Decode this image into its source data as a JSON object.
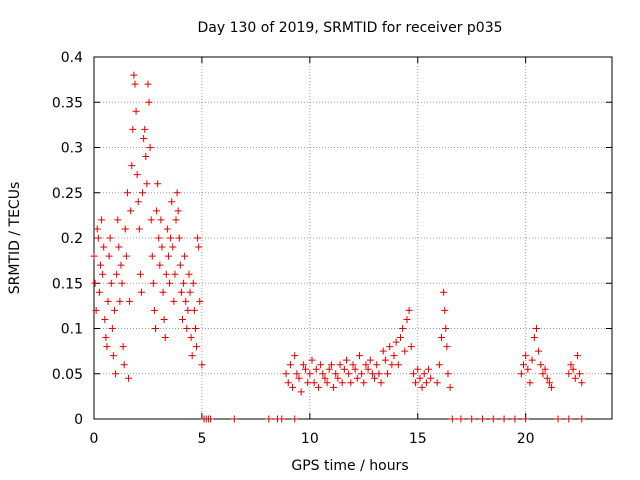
{
  "chart_data": {
    "type": "scatter",
    "title": "Day 130 of 2019, SRMTID for receiver p035",
    "xlabel": "GPS time / hours",
    "ylabel": "SRMTID / TECUs",
    "xlim": [
      0,
      24
    ],
    "ylim": [
      0,
      0.4
    ],
    "x_ticks": [
      0,
      5,
      10,
      15,
      20
    ],
    "x_tick_labels": [
      "0",
      "5",
      "10",
      "15",
      "20"
    ],
    "y_ticks": [
      0,
      0.05,
      0.1,
      0.15,
      0.2,
      0.25,
      0.3,
      0.35,
      0.4
    ],
    "y_tick_labels": [
      "0",
      "0.05",
      "0.1",
      "0.15",
      "0.2",
      "0.25",
      "0.3",
      "0.35",
      "0.4"
    ],
    "grid": true,
    "marker": "+",
    "color": "#e00000",
    "series": [
      {
        "name": "SRMTID",
        "points": [
          [
            0.0,
            0.18
          ],
          [
            0.05,
            0.15
          ],
          [
            0.1,
            0.12
          ],
          [
            0.15,
            0.21
          ],
          [
            0.2,
            0.2
          ],
          [
            0.25,
            0.14
          ],
          [
            0.3,
            0.17
          ],
          [
            0.35,
            0.22
          ],
          [
            0.4,
            0.16
          ],
          [
            0.45,
            0.19
          ],
          [
            0.5,
            0.11
          ],
          [
            0.55,
            0.09
          ],
          [
            0.6,
            0.08
          ],
          [
            0.65,
            0.13
          ],
          [
            0.7,
            0.18
          ],
          [
            0.75,
            0.2
          ],
          [
            0.8,
            0.15
          ],
          [
            0.85,
            0.1
          ],
          [
            0.9,
            0.07
          ],
          [
            0.95,
            0.12
          ],
          [
            1.0,
            0.05
          ],
          [
            1.05,
            0.16
          ],
          [
            1.1,
            0.22
          ],
          [
            1.15,
            0.19
          ],
          [
            1.2,
            0.13
          ],
          [
            1.25,
            0.17
          ],
          [
            1.3,
            0.15
          ],
          [
            1.35,
            0.08
          ],
          [
            1.4,
            0.06
          ],
          [
            1.45,
            0.21
          ],
          [
            1.5,
            0.18
          ],
          [
            1.55,
            0.25
          ],
          [
            1.6,
            0.045
          ],
          [
            1.65,
            0.13
          ],
          [
            1.7,
            0.23
          ],
          [
            1.75,
            0.28
          ],
          [
            1.8,
            0.32
          ],
          [
            1.85,
            0.38
          ],
          [
            1.9,
            0.37
          ],
          [
            1.95,
            0.34
          ],
          [
            2.0,
            0.27
          ],
          [
            2.05,
            0.24
          ],
          [
            2.1,
            0.21
          ],
          [
            2.15,
            0.16
          ],
          [
            2.2,
            0.14
          ],
          [
            2.25,
            0.25
          ],
          [
            2.3,
            0.31
          ],
          [
            2.35,
            0.32
          ],
          [
            2.4,
            0.29
          ],
          [
            2.45,
            0.26
          ],
          [
            2.5,
            0.37
          ],
          [
            2.55,
            0.35
          ],
          [
            2.6,
            0.3
          ],
          [
            2.65,
            0.22
          ],
          [
            2.7,
            0.18
          ],
          [
            2.75,
            0.15
          ],
          [
            2.8,
            0.12
          ],
          [
            2.85,
            0.1
          ],
          [
            2.9,
            0.23
          ],
          [
            2.95,
            0.26
          ],
          [
            3.0,
            0.2
          ],
          [
            3.05,
            0.17
          ],
          [
            3.1,
            0.22
          ],
          [
            3.15,
            0.19
          ],
          [
            3.2,
            0.14
          ],
          [
            3.25,
            0.11
          ],
          [
            3.3,
            0.09
          ],
          [
            3.35,
            0.16
          ],
          [
            3.4,
            0.21
          ],
          [
            3.45,
            0.18
          ],
          [
            3.5,
            0.15
          ],
          [
            3.55,
            0.2
          ],
          [
            3.6,
            0.24
          ],
          [
            3.65,
            0.19
          ],
          [
            3.7,
            0.13
          ],
          [
            3.75,
            0.16
          ],
          [
            3.8,
            0.22
          ],
          [
            3.85,
            0.25
          ],
          [
            3.9,
            0.23
          ],
          [
            3.95,
            0.2
          ],
          [
            4.0,
            0.17
          ],
          [
            4.05,
            0.14
          ],
          [
            4.1,
            0.11
          ],
          [
            4.15,
            0.15
          ],
          [
            4.2,
            0.18
          ],
          [
            4.25,
            0.13
          ],
          [
            4.3,
            0.1
          ],
          [
            4.35,
            0.12
          ],
          [
            4.4,
            0.16
          ],
          [
            4.45,
            0.14
          ],
          [
            4.5,
            0.09
          ],
          [
            4.55,
            0.07
          ],
          [
            4.6,
            0.15
          ],
          [
            4.65,
            0.12
          ],
          [
            4.7,
            0.1
          ],
          [
            4.75,
            0.08
          ],
          [
            4.8,
            0.2
          ],
          [
            4.85,
            0.19
          ],
          [
            4.9,
            0.13
          ],
          [
            5.0,
            0.06
          ],
          [
            5.1,
            0.0
          ],
          [
            5.2,
            0.0
          ],
          [
            5.3,
            0.0
          ],
          [
            5.4,
            0.0
          ],
          [
            6.5,
            0.0
          ],
          [
            8.1,
            0.0
          ],
          [
            8.5,
            0.0
          ],
          [
            8.7,
            0.0
          ],
          [
            9.3,
            0.0
          ],
          [
            8.9,
            0.05
          ],
          [
            9.0,
            0.04
          ],
          [
            9.1,
            0.06
          ],
          [
            9.2,
            0.035
          ],
          [
            9.3,
            0.07
          ],
          [
            9.4,
            0.05
          ],
          [
            9.5,
            0.045
          ],
          [
            9.6,
            0.03
          ],
          [
            9.7,
            0.06
          ],
          [
            9.8,
            0.055
          ],
          [
            9.9,
            0.04
          ],
          [
            10.0,
            0.05
          ],
          [
            10.1,
            0.065
          ],
          [
            10.2,
            0.04
          ],
          [
            10.3,
            0.055
          ],
          [
            10.4,
            0.035
          ],
          [
            10.5,
            0.06
          ],
          [
            10.6,
            0.05
          ],
          [
            10.7,
            0.045
          ],
          [
            10.8,
            0.04
          ],
          [
            10.9,
            0.055
          ],
          [
            11.0,
            0.06
          ],
          [
            11.1,
            0.035
          ],
          [
            11.2,
            0.05
          ],
          [
            11.3,
            0.045
          ],
          [
            11.4,
            0.06
          ],
          [
            11.5,
            0.04
          ],
          [
            11.6,
            0.055
          ],
          [
            11.7,
            0.065
          ],
          [
            11.8,
            0.05
          ],
          [
            11.9,
            0.04
          ],
          [
            12.0,
            0.06
          ],
          [
            12.1,
            0.055
          ],
          [
            12.2,
            0.045
          ],
          [
            12.3,
            0.07
          ],
          [
            12.4,
            0.05
          ],
          [
            12.5,
            0.04
          ],
          [
            12.6,
            0.06
          ],
          [
            12.7,
            0.055
          ],
          [
            12.8,
            0.065
          ],
          [
            12.9,
            0.05
          ],
          [
            13.0,
            0.045
          ],
          [
            13.1,
            0.06
          ],
          [
            13.2,
            0.05
          ],
          [
            13.3,
            0.04
          ],
          [
            13.4,
            0.075
          ],
          [
            13.5,
            0.065
          ],
          [
            13.6,
            0.05
          ],
          [
            13.7,
            0.08
          ],
          [
            13.8,
            0.06
          ],
          [
            13.9,
            0.07
          ],
          [
            14.0,
            0.085
          ],
          [
            14.1,
            0.06
          ],
          [
            14.2,
            0.09
          ],
          [
            14.3,
            0.1
          ],
          [
            14.4,
            0.075
          ],
          [
            14.5,
            0.11
          ],
          [
            14.6,
            0.12
          ],
          [
            14.7,
            0.08
          ],
          [
            14.8,
            0.05
          ],
          [
            14.9,
            0.04
          ],
          [
            15.0,
            0.055
          ],
          [
            15.1,
            0.045
          ],
          [
            15.2,
            0.035
          ],
          [
            15.3,
            0.05
          ],
          [
            15.4,
            0.04
          ],
          [
            15.5,
            0.055
          ],
          [
            15.6,
            0.045
          ],
          [
            15.9,
            0.04
          ],
          [
            16.0,
            0.06
          ],
          [
            16.1,
            0.09
          ],
          [
            16.2,
            0.14
          ],
          [
            16.25,
            0.12
          ],
          [
            16.3,
            0.1
          ],
          [
            16.35,
            0.08
          ],
          [
            16.4,
            0.05
          ],
          [
            16.5,
            0.035
          ],
          [
            16.6,
            0.0
          ],
          [
            17.0,
            0.0
          ],
          [
            17.5,
            0.0
          ],
          [
            18.0,
            0.0
          ],
          [
            18.5,
            0.0
          ],
          [
            19.0,
            0.0
          ],
          [
            19.5,
            0.0
          ],
          [
            20.0,
            0.0
          ],
          [
            21.5,
            0.0
          ],
          [
            22.0,
            0.0
          ],
          [
            22.6,
            0.0
          ],
          [
            19.8,
            0.05
          ],
          [
            19.9,
            0.06
          ],
          [
            20.0,
            0.07
          ],
          [
            20.1,
            0.055
          ],
          [
            20.2,
            0.04
          ],
          [
            20.3,
            0.065
          ],
          [
            20.4,
            0.09
          ],
          [
            20.5,
            0.1
          ],
          [
            20.6,
            0.075
          ],
          [
            20.7,
            0.06
          ],
          [
            20.8,
            0.05
          ],
          [
            20.9,
            0.055
          ],
          [
            21.0,
            0.045
          ],
          [
            21.1,
            0.04
          ],
          [
            21.2,
            0.035
          ],
          [
            22.0,
            0.05
          ],
          [
            22.1,
            0.06
          ],
          [
            22.2,
            0.055
          ],
          [
            22.3,
            0.045
          ],
          [
            22.4,
            0.07
          ],
          [
            22.5,
            0.05
          ],
          [
            22.6,
            0.04
          ]
        ]
      }
    ]
  }
}
